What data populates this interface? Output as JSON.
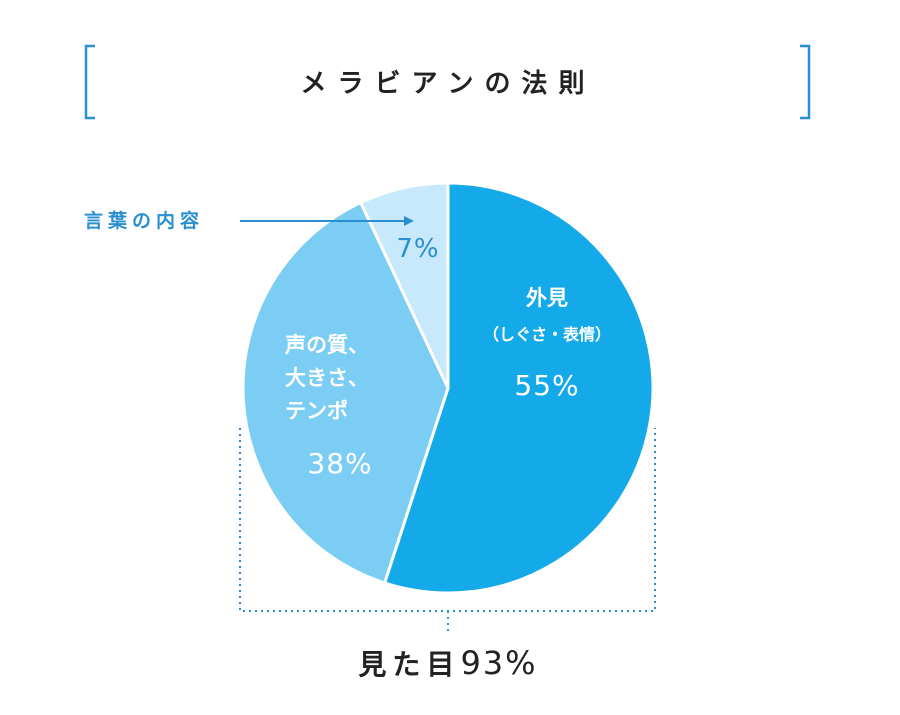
{
  "title": "メラビアンの法則",
  "chart_data": {
    "type": "pie",
    "slices": [
      {
        "key": "appearance",
        "label_lines": [
          "外見",
          "（しぐさ・表情）"
        ],
        "value": 55,
        "value_label": "55%",
        "color": "#14a9e9"
      },
      {
        "key": "voice",
        "label_lines": [
          "声の質、",
          "大きさ、",
          "テンポ"
        ],
        "value": 38,
        "value_label": "38%",
        "color": "#7ccdf4"
      },
      {
        "key": "words",
        "label_lines": [],
        "value": 7,
        "value_label": "7%",
        "color": "#c8e9fb"
      }
    ],
    "callout": {
      "text": "言葉の内容",
      "color": "#2a8fd0"
    },
    "summary": {
      "label": "見た目",
      "value": "93%"
    },
    "accent_color": "#2a8fd0"
  }
}
